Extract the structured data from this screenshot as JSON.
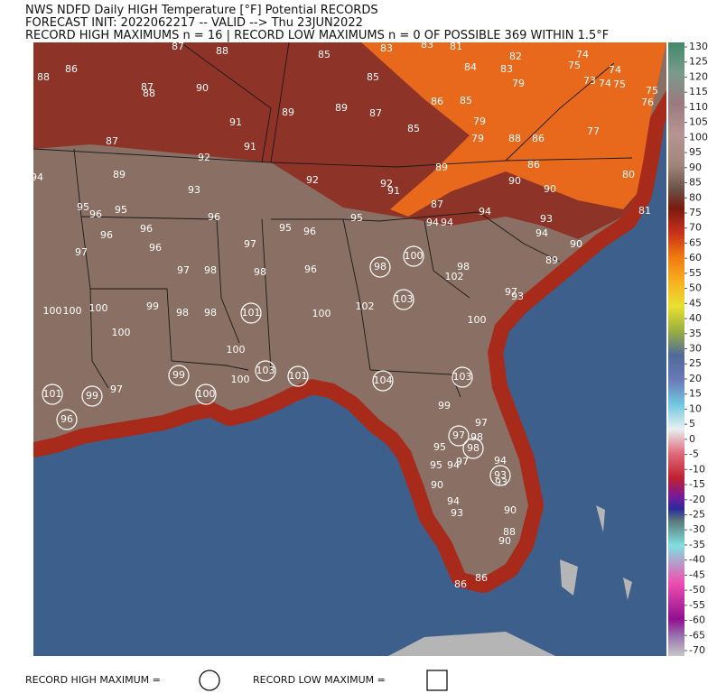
{
  "header": {
    "line1": "NWS NDFD Daily HIGH Temperature [°F] Potential RECORDS",
    "line2": "FORECAST INIT: 2022062217 -- VALID --> Thu 23JUN2022",
    "line3": "RECORD HIGH MAXIMUMS n = 16 | RECORD LOW MAXIMUMS n = 0 OF POSSIBLE 369 WITHIN 1.5°F"
  },
  "map_labels": [
    88,
    86,
    87,
    88,
    85,
    83,
    83,
    81,
    82,
    84,
    83,
    74,
    75,
    74,
    73,
    74,
    75,
    75,
    76,
    79,
    87,
    88,
    90,
    85,
    86,
    85,
    89,
    89,
    87,
    91,
    85,
    79,
    79,
    88,
    86,
    77,
    87,
    91,
    92,
    89,
    86,
    80,
    94,
    89,
    93,
    92,
    92,
    91,
    90,
    90,
    87,
    81,
    95,
    96,
    95,
    96,
    94,
    94,
    94,
    95,
    93,
    96,
    96,
    95,
    96,
    94,
    90,
    97,
    96,
    97,
    100,
    98,
    98,
    89,
    97,
    98,
    98,
    96,
    102,
    97,
    93,
    103,
    100,
    100,
    100,
    99,
    98,
    98,
    101,
    100,
    102,
    100,
    100,
    100,
    99,
    103,
    101,
    100,
    104,
    103,
    101,
    99,
    97,
    100,
    99,
    96,
    97,
    97,
    98,
    98,
    95,
    94,
    95,
    94,
    97,
    93,
    93,
    90,
    94,
    93,
    90,
    88,
    90,
    86,
    86
  ],
  "colorbar": {
    "ticks": [
      130,
      125,
      120,
      115,
      110,
      105,
      100,
      95,
      90,
      85,
      80,
      75,
      70,
      65,
      60,
      55,
      50,
      45,
      40,
      35,
      30,
      25,
      20,
      15,
      10,
      5,
      0,
      -5,
      -10,
      -15,
      -20,
      -25,
      -30,
      -35,
      -40,
      -45,
      -50,
      -55,
      -60,
      -65,
      -70
    ]
  },
  "legend": {
    "high": "RECORD HIGH MAXIMUM =",
    "low": "RECORD LOW MAXIMUM ="
  }
}
